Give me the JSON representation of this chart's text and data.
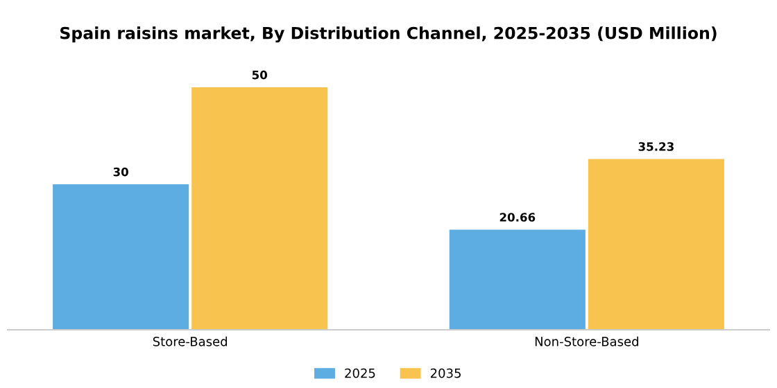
{
  "chart_data": {
    "type": "bar",
    "title": "Spain raisins market, By Distribution Channel, 2025-2035 (USD Million)",
    "categories": [
      "Store-Based",
      "Non-Store-Based"
    ],
    "series": [
      {
        "name": "2025",
        "color": "#5dade2",
        "values": [
          30,
          20.66
        ]
      },
      {
        "name": "2035",
        "color": "#f9c34f",
        "values": [
          50,
          35.23
        ]
      }
    ],
    "data_labels": true,
    "legend": "bottom",
    "grid": false
  }
}
